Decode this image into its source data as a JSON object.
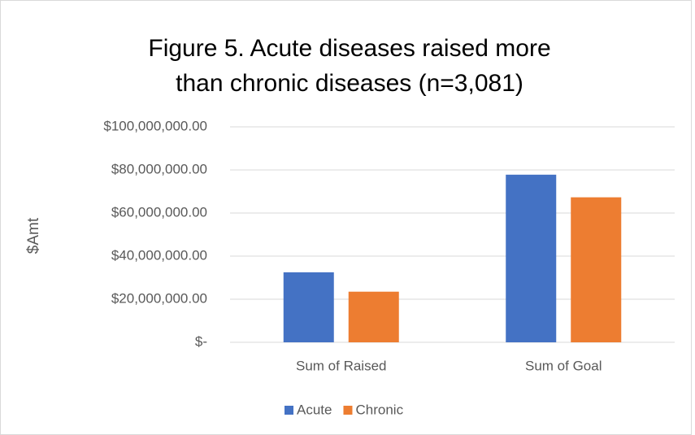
{
  "chart_data": {
    "type": "bar",
    "title": "Figure 5. Acute diseases raised more than chronic diseases (n=3,081)",
    "y_label": "$Amt",
    "categories": [
      "Sum of Raised",
      "Sum of Goal"
    ],
    "series": [
      {
        "name": "Acute",
        "color": "#4472c4",
        "values": [
          32500000,
          77800000
        ]
      },
      {
        "name": "Chronic",
        "color": "#ed7d31",
        "values": [
          23500000,
          67300000
        ]
      }
    ],
    "ylim": [
      0,
      100000000
    ],
    "yticks": [
      {
        "value": 0,
        "label": "$-"
      },
      {
        "value": 20000000,
        "label": "$20,000,000.00"
      },
      {
        "value": 40000000,
        "label": "$40,000,000.00"
      },
      {
        "value": 60000000,
        "label": "$60,000,000.00"
      },
      {
        "value": 80000000,
        "label": "$80,000,000.00"
      },
      {
        "value": 100000000,
        "label": "$100,000,000.00"
      }
    ],
    "grid": true,
    "legend": "bottom"
  }
}
